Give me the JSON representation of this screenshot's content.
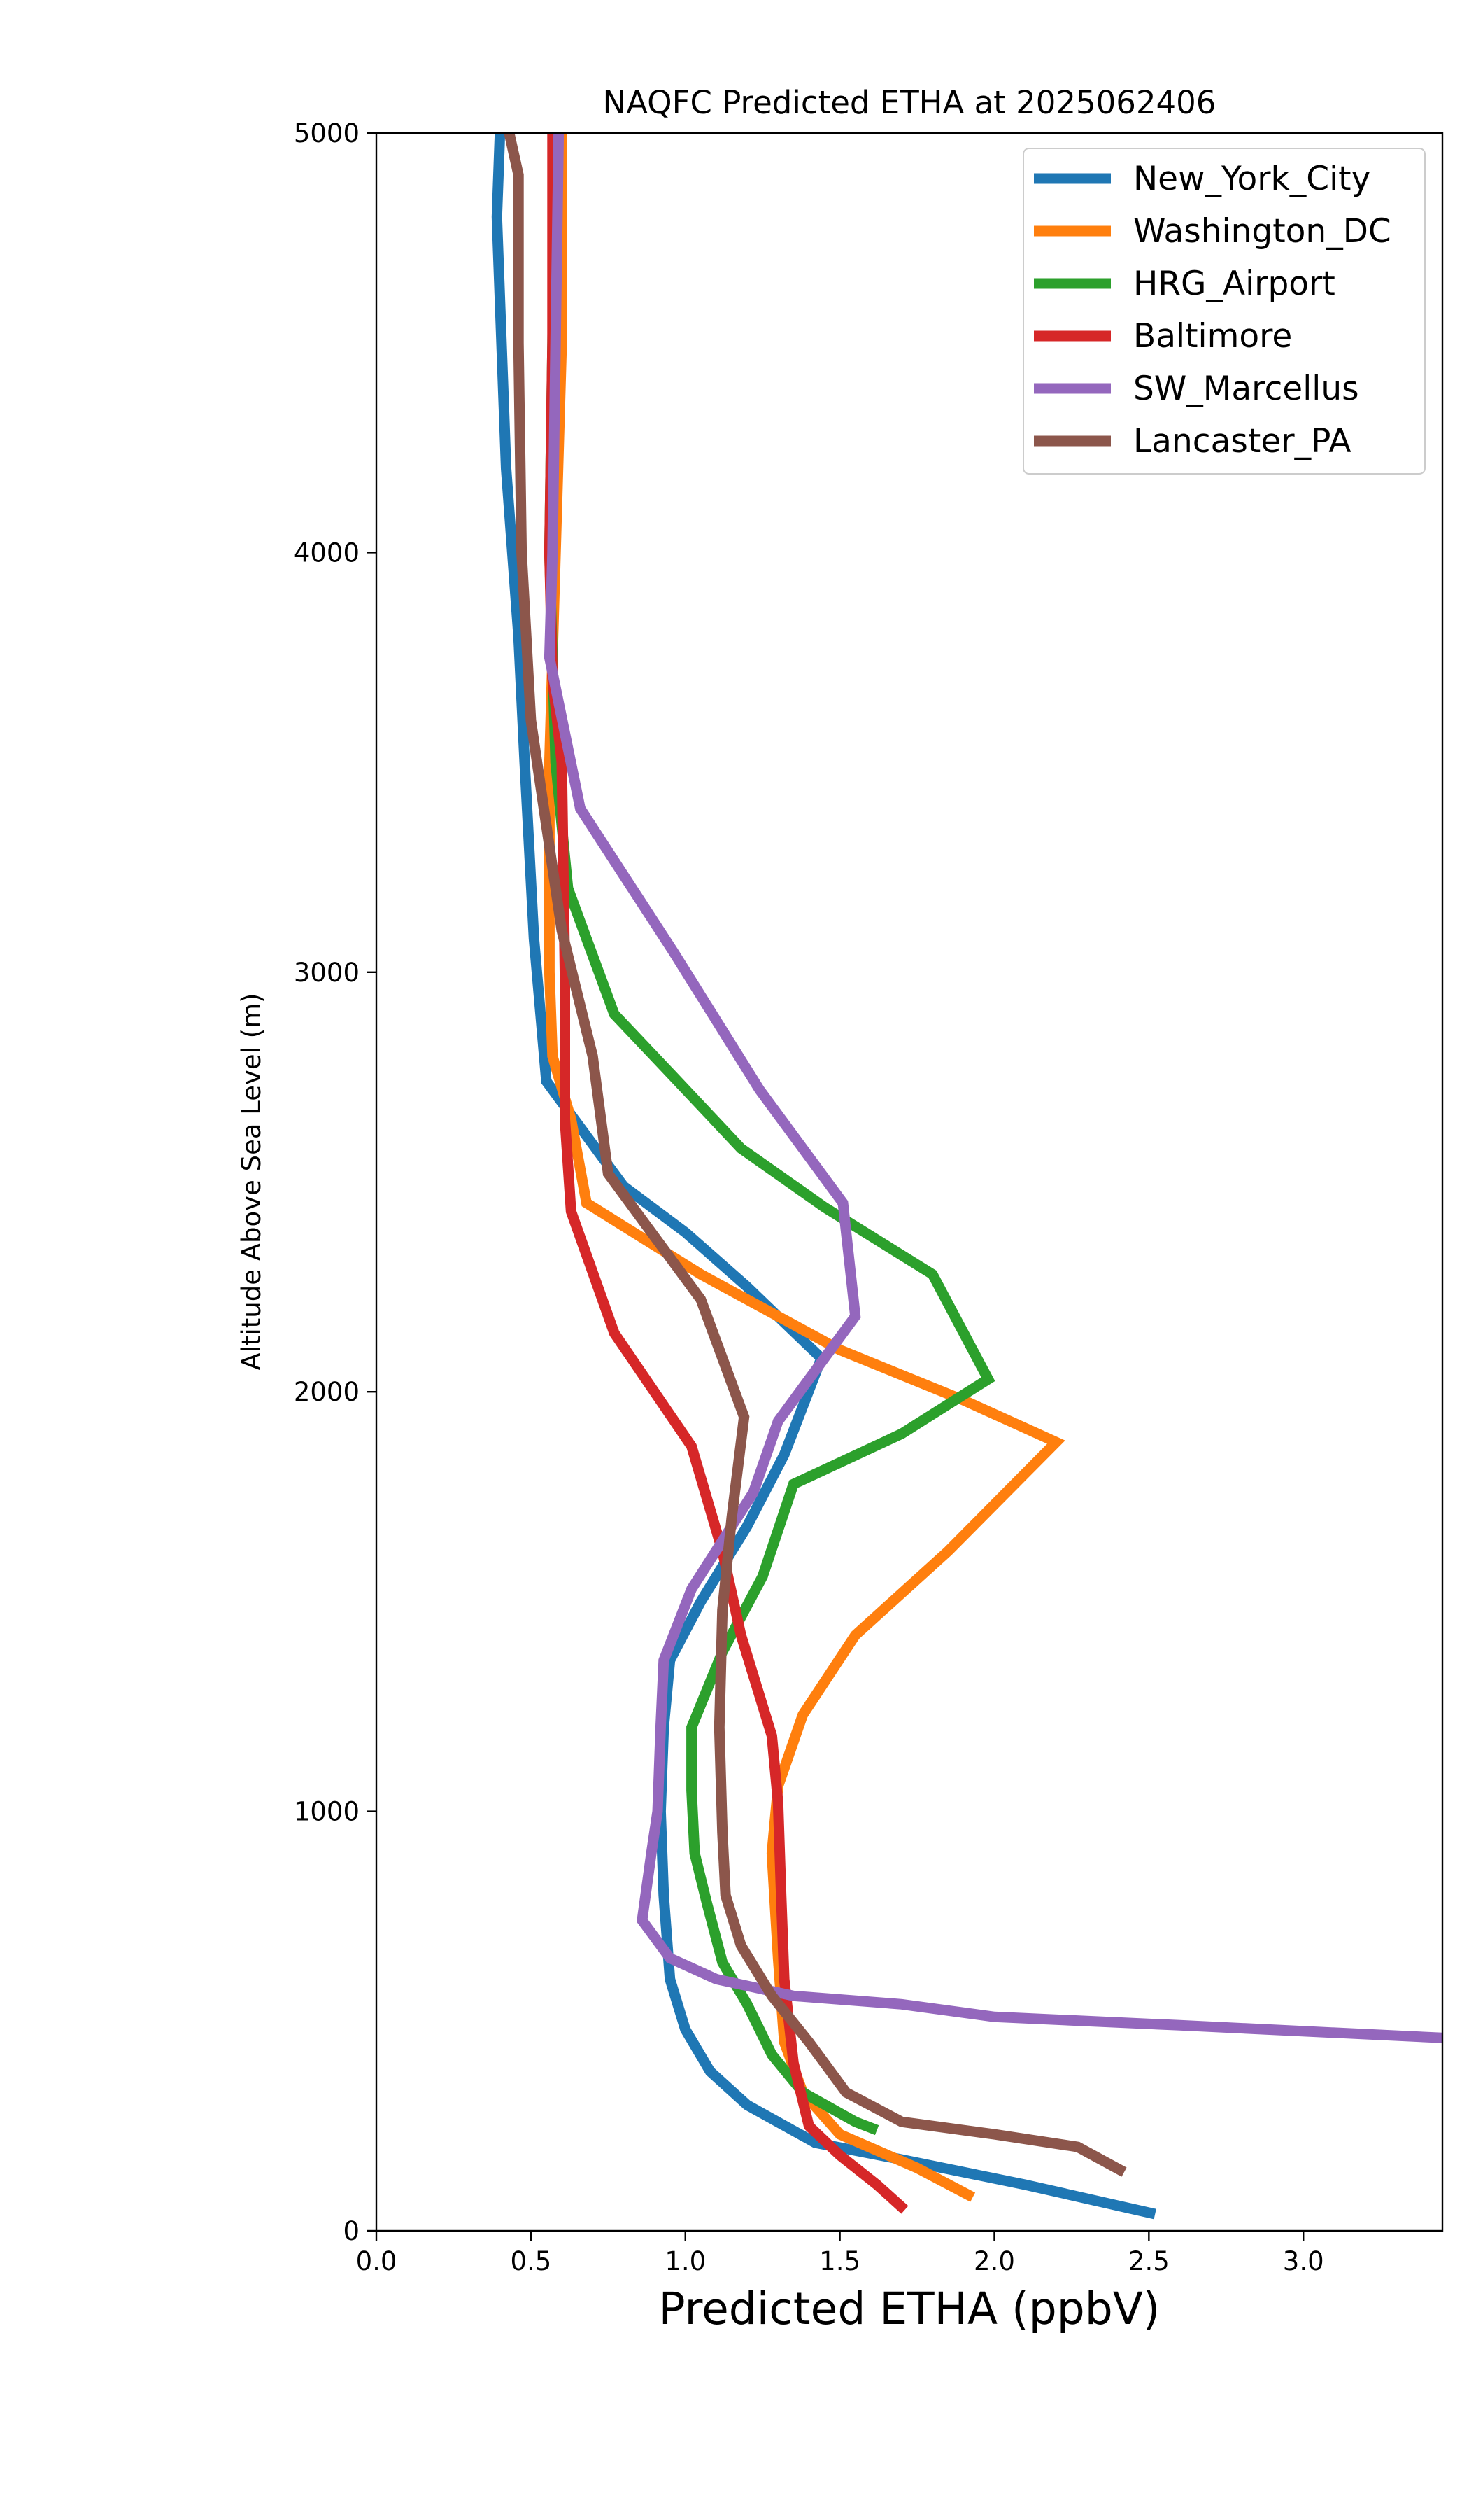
{
  "chart_data": {
    "type": "line",
    "title": "NAQFC Predicted ETHA at 2025062406",
    "xlabel": "Predicted ETHA (ppbV)",
    "ylabel": "Altitude Above Sea Level (m)",
    "xlim": [
      0,
      3.45
    ],
    "ylim": [
      0,
      5000
    ],
    "xticks": [
      "0.0",
      "0.5",
      "1.0",
      "1.5",
      "2.0",
      "2.5",
      "3.0"
    ],
    "yticks": [
      "0",
      "1000",
      "2000",
      "3000",
      "4000",
      "5000"
    ],
    "grid": false,
    "legend_position": "top-right",
    "series": [
      {
        "name": "New_York_City",
        "color": "#1f77b4",
        "points": [
          [
            0.4,
            5000
          ],
          [
            0.39,
            4800
          ],
          [
            0.42,
            4200
          ],
          [
            0.46,
            3800
          ],
          [
            0.48,
            3500
          ],
          [
            0.51,
            3080
          ],
          [
            0.55,
            2740
          ],
          [
            0.8,
            2490
          ],
          [
            1.0,
            2380
          ],
          [
            1.2,
            2250
          ],
          [
            1.44,
            2080
          ],
          [
            1.32,
            1850
          ],
          [
            1.2,
            1680
          ],
          [
            1.05,
            1500
          ],
          [
            0.95,
            1360
          ],
          [
            0.93,
            1200
          ],
          [
            0.92,
            1000
          ],
          [
            0.93,
            800
          ],
          [
            0.95,
            600
          ],
          [
            1.0,
            480
          ],
          [
            1.08,
            380
          ],
          [
            1.2,
            300
          ],
          [
            1.42,
            210
          ],
          [
            1.7,
            170
          ],
          [
            2.1,
            110
          ],
          [
            2.52,
            40
          ]
        ]
      },
      {
        "name": "Washington_DC",
        "color": "#ff7f0e",
        "points": [
          [
            0.6,
            5000
          ],
          [
            0.6,
            4500
          ],
          [
            0.58,
            4000
          ],
          [
            0.56,
            3500
          ],
          [
            0.56,
            3000
          ],
          [
            0.57,
            2800
          ],
          [
            0.63,
            2650
          ],
          [
            0.68,
            2450
          ],
          [
            1.05,
            2280
          ],
          [
            1.5,
            2100
          ],
          [
            1.9,
            1980
          ],
          [
            2.2,
            1880
          ],
          [
            1.85,
            1620
          ],
          [
            1.55,
            1420
          ],
          [
            1.38,
            1230
          ],
          [
            1.3,
            1060
          ],
          [
            1.28,
            900
          ],
          [
            1.3,
            650
          ],
          [
            1.32,
            450
          ],
          [
            1.38,
            330
          ],
          [
            1.5,
            230
          ],
          [
            1.75,
            150
          ],
          [
            1.93,
            80
          ]
        ]
      },
      {
        "name": "HRG_Airport",
        "color": "#2ca02c",
        "points": [
          [
            0.58,
            5000
          ],
          [
            0.57,
            4500
          ],
          [
            0.56,
            4000
          ],
          [
            0.58,
            3500
          ],
          [
            0.62,
            3200
          ],
          [
            0.77,
            2900
          ],
          [
            0.95,
            2760
          ],
          [
            1.18,
            2580
          ],
          [
            1.45,
            2440
          ],
          [
            1.8,
            2280
          ],
          [
            1.98,
            2030
          ],
          [
            1.7,
            1900
          ],
          [
            1.35,
            1780
          ],
          [
            1.25,
            1560
          ],
          [
            1.12,
            1380
          ],
          [
            1.02,
            1200
          ],
          [
            1.02,
            1050
          ],
          [
            1.03,
            900
          ],
          [
            1.07,
            780
          ],
          [
            1.12,
            640
          ],
          [
            1.2,
            540
          ],
          [
            1.28,
            420
          ],
          [
            1.38,
            330
          ],
          [
            1.55,
            260
          ],
          [
            1.62,
            240
          ]
        ]
      },
      {
        "name": "Baltimore",
        "color": "#d62728",
        "points": [
          [
            0.57,
            5000
          ],
          [
            0.57,
            4500
          ],
          [
            0.56,
            4000
          ],
          [
            0.57,
            3700
          ],
          [
            0.6,
            3500
          ],
          [
            0.61,
            3000
          ],
          [
            0.61,
            2800
          ],
          [
            0.61,
            2650
          ],
          [
            0.63,
            2430
          ],
          [
            0.77,
            2140
          ],
          [
            1.02,
            1870
          ],
          [
            1.12,
            1620
          ],
          [
            1.18,
            1420
          ],
          [
            1.28,
            1180
          ],
          [
            1.3,
            1020
          ],
          [
            1.31,
            800
          ],
          [
            1.32,
            600
          ],
          [
            1.35,
            400
          ],
          [
            1.4,
            250
          ],
          [
            1.5,
            180
          ],
          [
            1.62,
            110
          ],
          [
            1.71,
            50
          ]
        ]
      },
      {
        "name": "SW_Marcellus",
        "color": "#9467bd",
        "points": [
          [
            0.59,
            5000
          ],
          [
            0.58,
            4500
          ],
          [
            0.57,
            4000
          ],
          [
            0.56,
            3750
          ],
          [
            0.66,
            3390
          ],
          [
            0.96,
            3050
          ],
          [
            1.24,
            2720
          ],
          [
            1.51,
            2450
          ],
          [
            1.55,
            2180
          ],
          [
            1.4,
            2030
          ],
          [
            1.3,
            1930
          ],
          [
            1.22,
            1760
          ],
          [
            1.02,
            1530
          ],
          [
            0.93,
            1360
          ],
          [
            0.92,
            1200
          ],
          [
            0.91,
            1000
          ],
          [
            0.89,
            900
          ],
          [
            0.86,
            740
          ],
          [
            0.95,
            650
          ],
          [
            1.1,
            600
          ],
          [
            1.35,
            560
          ],
          [
            1.7,
            540
          ],
          [
            2.0,
            510
          ],
          [
            2.6,
            490
          ],
          [
            3.45,
            460
          ]
        ]
      },
      {
        "name": "Lancaster_PA",
        "color": "#8c564b",
        "points": [
          [
            0.43,
            5000
          ],
          [
            0.46,
            4900
          ],
          [
            0.46,
            4500
          ],
          [
            0.47,
            4000
          ],
          [
            0.5,
            3600
          ],
          [
            0.6,
            3100
          ],
          [
            0.7,
            2800
          ],
          [
            0.75,
            2520
          ],
          [
            0.87,
            2400
          ],
          [
            1.05,
            2220
          ],
          [
            1.19,
            1940
          ],
          [
            1.15,
            1700
          ],
          [
            1.12,
            1480
          ],
          [
            1.11,
            1200
          ],
          [
            1.12,
            950
          ],
          [
            1.13,
            800
          ],
          [
            1.18,
            680
          ],
          [
            1.28,
            560
          ],
          [
            1.4,
            450
          ],
          [
            1.52,
            330
          ],
          [
            1.7,
            260
          ],
          [
            2.0,
            230
          ],
          [
            2.27,
            200
          ],
          [
            2.42,
            140
          ]
        ]
      }
    ]
  }
}
